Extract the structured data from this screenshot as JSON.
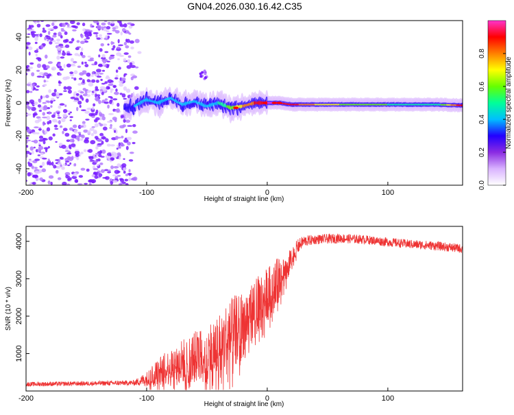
{
  "title": "GN04.2026.030.16.42.C35",
  "chart_data": [
    {
      "type": "heatmap",
      "name": "spectrogram",
      "title": "GN04.2026.030.16.42.C35",
      "xlabel": "Height of straight line (km)",
      "ylabel": "Frequency (Hz)",
      "xlim": [
        -200,
        162
      ],
      "ylim": [
        -50,
        50
      ],
      "xticks": [
        -200,
        -100,
        0,
        100
      ],
      "yticks": [
        -40,
        -20,
        0,
        20,
        40
      ],
      "xtick_labels": [
        "-200",
        "-100",
        "0",
        "100"
      ],
      "ytick_labels": [
        "-40",
        "-20",
        "0",
        "20",
        "40"
      ],
      "signal_track": {
        "description_values": "frequency of dominant spectral peak vs height",
        "x": [
          -120,
          -110,
          -100,
          -90,
          -80,
          -70,
          -60,
          -50,
          -40,
          -30,
          -20,
          -10,
          0,
          10,
          20,
          40,
          60,
          80,
          100,
          120,
          140,
          162
        ],
        "freq": [
          -4,
          -2,
          2,
          0,
          3,
          -1,
          1,
          -2,
          0,
          -3,
          -2,
          0,
          0,
          0,
          -1,
          -1,
          -1,
          -1,
          -1,
          -1,
          -1,
          -1.5
        ],
        "amplitude": [
          0.25,
          0.35,
          0.45,
          0.4,
          0.45,
          0.4,
          0.35,
          0.4,
          0.45,
          0.6,
          0.75,
          0.85,
          0.95,
          0.95,
          0.9,
          0.75,
          0.65,
          0.6,
          0.55,
          0.5,
          0.45,
          0.95
        ]
      },
      "noise_region_x": [
        -200,
        -105
      ],
      "colorbar": {
        "label": "Normalized spectral amplitude",
        "range": [
          0.0,
          1.0
        ],
        "ticks": [
          0.0,
          0.2,
          0.4,
          0.6,
          0.8
        ],
        "tick_labels": [
          "0.0",
          "0.2",
          "0.4",
          "0.6",
          "0.8"
        ],
        "colors": [
          "#ffffff",
          "#a64dff",
          "#2200ff",
          "#00bfff",
          "#00ff99",
          "#66ff00",
          "#ffff00",
          "#ff8000",
          "#ff0000",
          "#ff33cc"
        ]
      }
    },
    {
      "type": "line",
      "name": "snr",
      "xlabel": "Height of straight line (km)",
      "ylabel": "SNR (10 * v/v)",
      "xlim": [
        -200,
        162
      ],
      "ylim": [
        0,
        4400
      ],
      "xticks": [
        -200,
        -100,
        0,
        100
      ],
      "yticks": [
        1000,
        2000,
        3000,
        4000
      ],
      "xtick_labels": [
        "-200",
        "-100",
        "0",
        "100"
      ],
      "ytick_labels": [
        "1000",
        "2000",
        "3000",
        "4000"
      ],
      "color": "#ee3333",
      "envelope": {
        "x": [
          -200,
          -150,
          -110,
          -100,
          -90,
          -80,
          -70,
          -60,
          -50,
          -40,
          -30,
          -20,
          -10,
          0,
          10,
          20,
          25,
          30,
          40,
          60,
          80,
          100,
          120,
          140,
          162
        ],
        "y": [
          180,
          200,
          220,
          320,
          500,
          650,
          800,
          900,
          1000,
          1200,
          1500,
          1800,
          2200,
          2600,
          3000,
          3500,
          3850,
          4000,
          4050,
          4080,
          4050,
          3980,
          3920,
          3880,
          3800
        ],
        "spread": [
          60,
          60,
          70,
          200,
          400,
          500,
          600,
          700,
          800,
          900,
          1000,
          900,
          800,
          700,
          600,
          300,
          200,
          150,
          130,
          130,
          120,
          120,
          120,
          120,
          120
        ]
      }
    }
  ]
}
